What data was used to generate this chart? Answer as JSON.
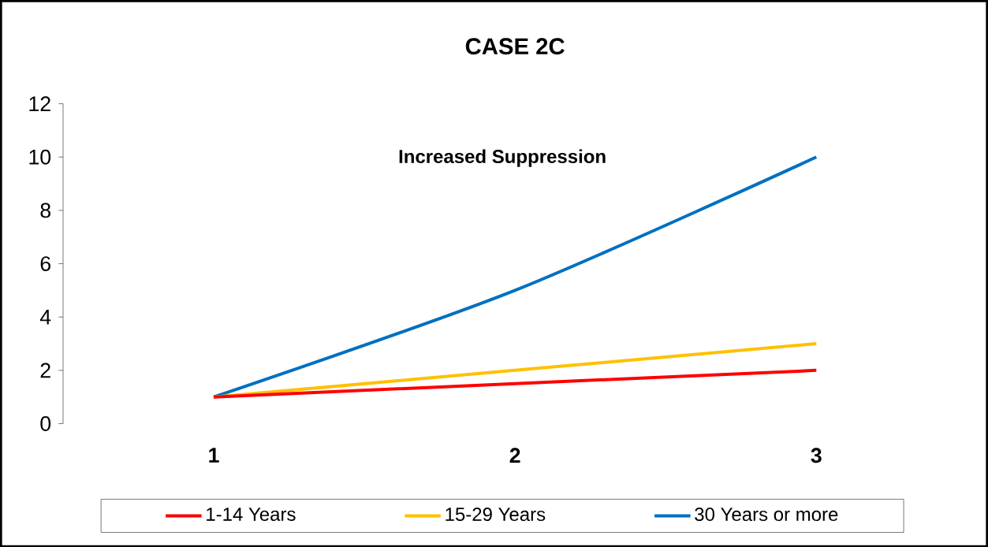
{
  "chart_data": {
    "type": "line",
    "title": "CASE 2C",
    "categories": [
      "1",
      "2",
      "3"
    ],
    "series": [
      {
        "name": "1-14 Years",
        "color": "#ff0000",
        "values": [
          1,
          1.5,
          2
        ]
      },
      {
        "name": "15-29 Years",
        "color": "#ffc000",
        "values": [
          1,
          2,
          3
        ]
      },
      {
        "name": "30 Years or more",
        "color": "#0070c0",
        "values": [
          1,
          5,
          10
        ]
      }
    ],
    "ylim": [
      0,
      12
    ],
    "yticks": [
      0,
      2,
      4,
      6,
      8,
      10,
      12
    ],
    "annotations": [
      "Increased Suppression"
    ],
    "legend": "bottom",
    "marker": "none",
    "grid": false
  }
}
